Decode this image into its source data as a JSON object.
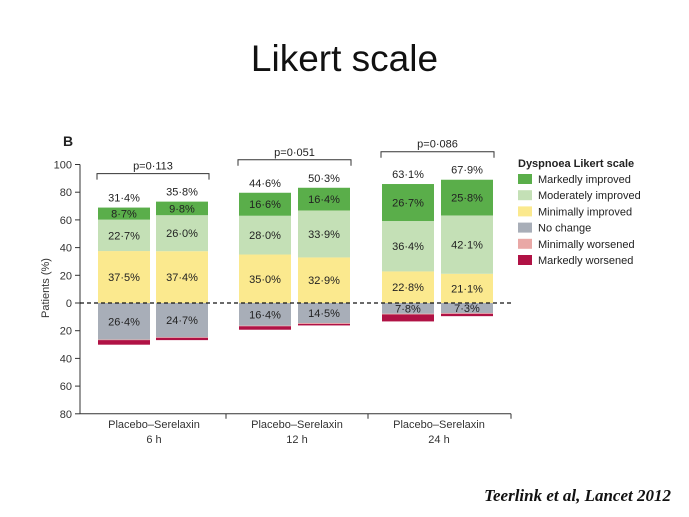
{
  "title": "Likert scale",
  "citation": "Teerlink et al, Lancet 2012",
  "colors": {
    "markedly_improved": "#5aae4a",
    "moderately_improved": "#c4e0b6",
    "minimally_improved": "#fbe98e",
    "no_change": "#a8aeb8",
    "minimally_worsened": "#e9a8a6",
    "markedly_worsened": "#b01245",
    "axis": "#333333"
  },
  "chart_data": {
    "type": "bar",
    "subtype": "diverging-stacked",
    "panel_label": "B",
    "ylabel": "Patients (%)",
    "ylim": [
      -80,
      100
    ],
    "yticks": [
      100,
      80,
      60,
      40,
      20,
      0,
      -20,
      -40,
      -60,
      -80
    ],
    "ytick_labels": [
      "100",
      "80",
      "60",
      "40",
      "20",
      "0",
      "20",
      "40",
      "60",
      "80"
    ],
    "zero_line": "dashed",
    "legend_title": "Dyspnoea Likert scale",
    "legend_position": "right",
    "legend": [
      {
        "key": "markedly_improved",
        "label": "Markedly improved"
      },
      {
        "key": "moderately_improved",
        "label": "Moderately improved"
      },
      {
        "key": "minimally_improved",
        "label": "Minimally improved"
      },
      {
        "key": "no_change",
        "label": "No change"
      },
      {
        "key": "minimally_worsened",
        "label": "Minimally worsened"
      },
      {
        "key": "markedly_worsened",
        "label": "Markedly worsened"
      }
    ],
    "groups": [
      {
        "label_line1": "Placebo–Serelaxin",
        "label_line2": "6 h",
        "p_value": "p=0·113",
        "bars": [
          {
            "name": "Placebo",
            "total_improved": "31·4%",
            "segments": {
              "markedly_improved": 8.7,
              "moderately_improved": 22.7,
              "minimally_improved": 37.5,
              "no_change": 26.4,
              "minimally_worsened": 0.4,
              "markedly_worsened": 3.3
            },
            "labels": {
              "markedly_improved": "8·7%",
              "moderately_improved": "22·7%",
              "minimally_improved": "37·5%",
              "no_change": "26·4%"
            }
          },
          {
            "name": "Serelaxin",
            "total_improved": "35·8%",
            "segments": {
              "markedly_improved": 9.8,
              "moderately_improved": 26.0,
              "minimally_improved": 37.4,
              "no_change": 24.7,
              "minimally_worsened": 0.4,
              "markedly_worsened": 1.7
            },
            "labels": {
              "markedly_improved": "9·8%",
              "moderately_improved": "26·0%",
              "minimally_improved": "37·4%",
              "no_change": "24·7%"
            }
          }
        ]
      },
      {
        "label_line1": "Placebo–Serelaxin",
        "label_line2": "12 h",
        "p_value": "p=0·051",
        "bars": [
          {
            "name": "Placebo",
            "total_improved": "44·6%",
            "segments": {
              "markedly_improved": 16.6,
              "moderately_improved": 28.0,
              "minimally_improved": 35.0,
              "no_change": 16.4,
              "minimally_worsened": 0.4,
              "markedly_worsened": 2.5
            },
            "labels": {
              "markedly_improved": "16·6%",
              "moderately_improved": "28·0%",
              "minimally_improved": "35·0%",
              "no_change": "16·4%"
            }
          },
          {
            "name": "Serelaxin",
            "total_improved": "50·3%",
            "segments": {
              "markedly_improved": 16.4,
              "moderately_improved": 33.9,
              "minimally_improved": 32.9,
              "no_change": 14.5,
              "minimally_worsened": 0.6,
              "markedly_worsened": 1.1
            },
            "labels": {
              "markedly_improved": "16·4%",
              "moderately_improved": "33·9%",
              "minimally_improved": "32·9%",
              "no_change": "14·5%"
            }
          }
        ]
      },
      {
        "label_line1": "Placebo–Serelaxin",
        "label_line2": "24 h",
        "p_value": "p=0·086",
        "bars": [
          {
            "name": "Placebo",
            "total_improved": "63·1%",
            "segments": {
              "markedly_improved": 26.7,
              "moderately_improved": 36.4,
              "minimally_improved": 22.8,
              "no_change": 7.8,
              "minimally_worsened": 0.5,
              "markedly_worsened": 5.0
            },
            "labels": {
              "markedly_improved": "26·7%",
              "moderately_improved": "36·4%",
              "minimally_improved": "22·8%",
              "no_change": "7·8%"
            }
          },
          {
            "name": "Serelaxin",
            "total_improved": "67·9%",
            "segments": {
              "markedly_improved": 25.8,
              "moderately_improved": 42.1,
              "minimally_improved": 21.1,
              "no_change": 7.3,
              "minimally_worsened": 0.5,
              "markedly_worsened": 1.7
            },
            "labels": {
              "markedly_improved": "25·8%",
              "moderately_improved": "42·1%",
              "minimally_improved": "21·1%",
              "no_change": "7·3%"
            }
          }
        ]
      }
    ]
  }
}
